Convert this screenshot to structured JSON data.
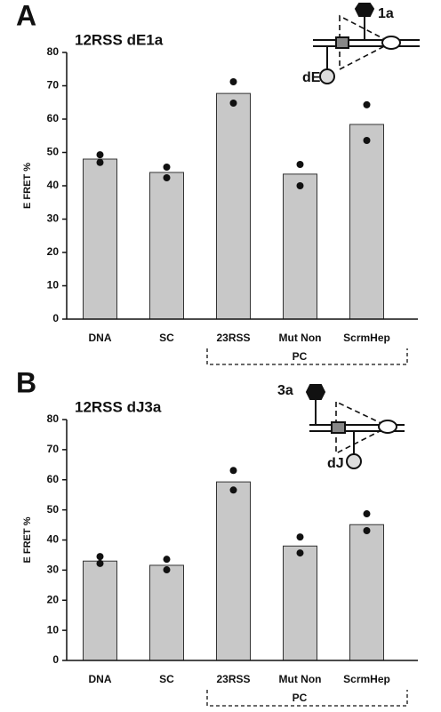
{
  "chart_data": [
    {
      "type": "bar",
      "panel": "A",
      "title": "12RSS dE1a",
      "ylabel": "E FRET %",
      "categories": [
        "DNA",
        "SC",
        "23RSS",
        "Mut Non",
        "ScrmHep"
      ],
      "values": [
        48,
        44,
        67.7,
        43.5,
        58.4
      ],
      "replicates": [
        [
          49.3,
          47
        ],
        [
          45.6,
          42.4
        ],
        [
          71.2,
          64.8
        ],
        [
          46.4,
          40
        ],
        [
          64.3,
          53.6
        ]
      ],
      "color": "#c8c8c8",
      "point_color": "#111111",
      "ylim": [
        0,
        80
      ],
      "yticks": [
        0,
        10,
        20,
        30,
        40,
        50,
        60,
        70,
        80
      ],
      "group_label": "PC",
      "diagram_labels": [
        "1a",
        "dE"
      ]
    },
    {
      "type": "bar",
      "panel": "B",
      "title": "12RSS dJ3a",
      "ylabel": "E FRET %",
      "categories": [
        "DNA",
        "SC",
        "23RSS",
        "Mut Non",
        "ScrmHep"
      ],
      "values": [
        33,
        31.6,
        59.3,
        38,
        45.1
      ],
      "replicates": [
        [
          34.5,
          32.2
        ],
        [
          33.6,
          30.1
        ],
        [
          63.1,
          56.6
        ],
        [
          41,
          35.7
        ],
        [
          48.7,
          43.1
        ]
      ],
      "color": "#c8c8c8",
      "point_color": "#111111",
      "ylim": [
        0,
        80
      ],
      "yticks": [
        0,
        10,
        20,
        30,
        40,
        50,
        60,
        70,
        80
      ],
      "group_label": "PC",
      "diagram_labels": [
        "3a",
        "dJ"
      ]
    }
  ]
}
